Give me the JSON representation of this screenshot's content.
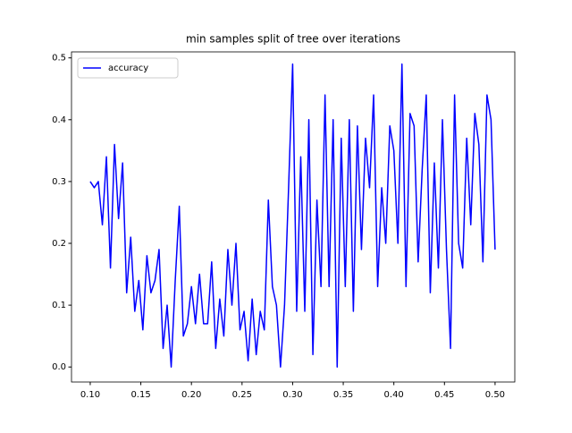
{
  "chart_data": {
    "type": "line",
    "title": "min samples split of tree over iterations",
    "x": [
      0.1,
      0.104,
      0.108,
      0.112,
      0.116,
      0.12,
      0.124,
      0.128,
      0.132,
      0.136,
      0.14,
      0.144,
      0.148,
      0.152,
      0.156,
      0.16,
      0.164,
      0.168,
      0.172,
      0.176,
      0.18,
      0.184,
      0.188,
      0.192,
      0.196,
      0.2,
      0.204,
      0.208,
      0.212,
      0.216,
      0.22,
      0.224,
      0.228,
      0.232,
      0.236,
      0.24,
      0.244,
      0.248,
      0.252,
      0.256,
      0.26,
      0.264,
      0.268,
      0.272,
      0.276,
      0.28,
      0.284,
      0.288,
      0.292,
      0.296,
      0.3,
      0.304,
      0.308,
      0.312,
      0.316,
      0.32,
      0.324,
      0.328,
      0.332,
      0.336,
      0.34,
      0.344,
      0.348,
      0.352,
      0.356,
      0.36,
      0.364,
      0.368,
      0.372,
      0.376,
      0.38,
      0.384,
      0.388,
      0.392,
      0.396,
      0.4,
      0.404,
      0.408,
      0.412,
      0.416,
      0.42,
      0.424,
      0.428,
      0.432,
      0.436,
      0.44,
      0.444,
      0.448,
      0.452,
      0.456,
      0.46,
      0.464,
      0.468,
      0.472,
      0.476,
      0.48,
      0.484,
      0.488,
      0.492,
      0.496,
      0.5
    ],
    "series": [
      {
        "name": "accuracy",
        "color": "#0000ff",
        "values": [
          0.3,
          0.29,
          0.3,
          0.23,
          0.34,
          0.16,
          0.36,
          0.24,
          0.33,
          0.12,
          0.21,
          0.09,
          0.14,
          0.06,
          0.18,
          0.12,
          0.14,
          0.19,
          0.03,
          0.1,
          0.0,
          0.14,
          0.26,
          0.05,
          0.07,
          0.13,
          0.07,
          0.15,
          0.07,
          0.07,
          0.17,
          0.03,
          0.11,
          0.05,
          0.19,
          0.1,
          0.2,
          0.06,
          0.09,
          0.01,
          0.11,
          0.02,
          0.09,
          0.06,
          0.27,
          0.13,
          0.1,
          0.0,
          0.1,
          0.29,
          0.49,
          0.09,
          0.34,
          0.09,
          0.4,
          0.02,
          0.27,
          0.13,
          0.44,
          0.13,
          0.4,
          0.0,
          0.37,
          0.13,
          0.4,
          0.09,
          0.39,
          0.19,
          0.37,
          0.29,
          0.44,
          0.13,
          0.29,
          0.2,
          0.39,
          0.35,
          0.2,
          0.49,
          0.13,
          0.41,
          0.39,
          0.17,
          0.32,
          0.44,
          0.12,
          0.33,
          0.16,
          0.4,
          0.19,
          0.03,
          0.44,
          0.2,
          0.16,
          0.37,
          0.23,
          0.41,
          0.36,
          0.17,
          0.44,
          0.4,
          0.19
        ]
      }
    ],
    "xlim": [
      0.0815,
      0.5195
    ],
    "ylim": [
      -0.0243,
      0.5097
    ],
    "xticks": [
      {
        "value": 0.1,
        "label": "0.10"
      },
      {
        "value": 0.15,
        "label": "0.15"
      },
      {
        "value": 0.2,
        "label": "0.20"
      },
      {
        "value": 0.25,
        "label": "0.25"
      },
      {
        "value": 0.3,
        "label": "0.30"
      },
      {
        "value": 0.35,
        "label": "0.35"
      },
      {
        "value": 0.4,
        "label": "0.40"
      },
      {
        "value": 0.45,
        "label": "0.45"
      },
      {
        "value": 0.5,
        "label": "0.50"
      }
    ],
    "yticks": [
      {
        "value": 0,
        "label": "0.0"
      },
      {
        "value": 0.1,
        "label": "0.1"
      },
      {
        "value": 0.2,
        "label": "0.2"
      },
      {
        "value": 0.3,
        "label": "0.3"
      },
      {
        "value": 0.4,
        "label": "0.4"
      },
      {
        "value": 0.5,
        "label": "0.5"
      }
    ],
    "legend": "upper left"
  }
}
